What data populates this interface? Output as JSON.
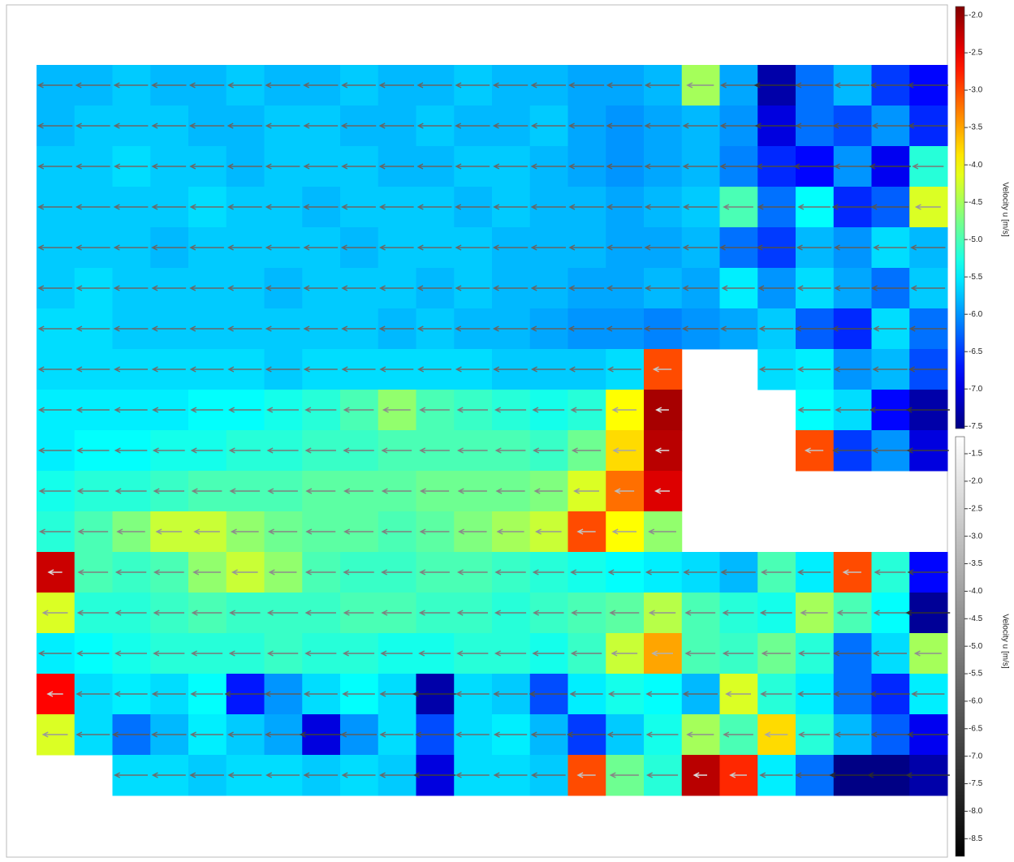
{
  "chart_data": {
    "type": "heatmap",
    "colormap": "jet",
    "z": [
      [
        -5.8,
        -5.8,
        -5.7,
        -5.8,
        -5.8,
        -5.7,
        -5.8,
        -5.8,
        -5.7,
        -5.8,
        -5.8,
        -5.7,
        -5.8,
        -5.8,
        -5.9,
        -5.9,
        -5.8,
        -4.5,
        -5.9,
        -7.3,
        -6.2,
        -5.8,
        -6.5,
        -6.8
      ],
      [
        -5.8,
        -5.7,
        -5.7,
        -5.7,
        -5.8,
        -5.8,
        -5.7,
        -5.7,
        -5.8,
        -5.8,
        -5.7,
        -5.8,
        -5.8,
        -5.7,
        -5.9,
        -6.0,
        -5.9,
        -5.8,
        -6.0,
        -7.0,
        -6.2,
        -6.4,
        -6.0,
        -6.6
      ],
      [
        -5.7,
        -5.7,
        -5.6,
        -5.7,
        -5.7,
        -5.8,
        -5.7,
        -5.7,
        -5.7,
        -5.8,
        -5.8,
        -5.7,
        -5.7,
        -5.8,
        -5.9,
        -6.0,
        -5.9,
        -5.8,
        -6.1,
        -6.6,
        -6.8,
        -6.0,
        -6.9,
        -5.2
      ],
      [
        -5.7,
        -5.7,
        -5.7,
        -5.7,
        -5.6,
        -5.7,
        -5.7,
        -5.8,
        -5.7,
        -5.7,
        -5.7,
        -5.8,
        -5.7,
        -5.8,
        -5.8,
        -5.9,
        -5.8,
        -5.7,
        -5.0,
        -6.2,
        -5.4,
        -6.6,
        -6.3,
        -4.2
      ],
      [
        -5.7,
        -5.7,
        -5.7,
        -5.8,
        -5.7,
        -5.7,
        -5.7,
        -5.7,
        -5.8,
        -5.7,
        -5.7,
        -5.7,
        -5.8,
        -5.8,
        -5.8,
        -5.9,
        -5.9,
        -5.8,
        -6.2,
        -6.5,
        -5.8,
        -6.0,
        -5.6,
        -5.8
      ],
      [
        -5.7,
        -5.6,
        -5.7,
        -5.7,
        -5.7,
        -5.7,
        -5.8,
        -5.7,
        -5.7,
        -5.7,
        -5.8,
        -5.7,
        -5.8,
        -5.8,
        -5.9,
        -5.9,
        -5.8,
        -5.9,
        -5.5,
        -6.0,
        -5.6,
        -5.9,
        -6.2,
        -5.7
      ],
      [
        -5.6,
        -5.6,
        -5.7,
        -5.7,
        -5.7,
        -5.7,
        -5.7,
        -5.7,
        -5.7,
        -5.8,
        -5.7,
        -5.8,
        -5.8,
        -5.9,
        -6.0,
        -6.0,
        -6.1,
        -6.0,
        -5.9,
        -5.7,
        -6.3,
        -6.6,
        -5.6,
        -6.2
      ],
      [
        -5.6,
        -5.6,
        -5.6,
        -5.6,
        -5.6,
        -5.6,
        -5.7,
        -5.6,
        -5.6,
        -5.6,
        -5.6,
        -5.6,
        -5.7,
        -5.7,
        -5.7,
        -5.6,
        -3.0,
        null,
        null,
        -5.6,
        -5.5,
        -6.0,
        -5.8,
        -6.4
      ],
      [
        -5.5,
        -5.5,
        -5.5,
        -5.5,
        -5.4,
        -5.4,
        -5.3,
        -5.2,
        -5.0,
        -4.6,
        -5.0,
        -5.1,
        -5.2,
        -5.3,
        -5.2,
        -4.0,
        -2.1,
        null,
        null,
        null,
        -5.4,
        -5.6,
        -6.8,
        -7.3
      ],
      [
        -5.5,
        -5.4,
        -5.4,
        -5.3,
        -5.3,
        -5.2,
        -5.2,
        -5.1,
        -5.1,
        -5.0,
        -5.0,
        -5.0,
        -5.0,
        -5.1,
        -4.8,
        -3.8,
        -2.2,
        null,
        null,
        null,
        -3.0,
        -6.5,
        -6.0,
        -7.0
      ],
      [
        -5.3,
        -5.2,
        -5.2,
        -5.1,
        -5.0,
        -5.0,
        -5.0,
        -4.9,
        -4.9,
        -4.9,
        -4.8,
        -4.8,
        -4.8,
        -4.7,
        -4.2,
        -3.2,
        -2.4,
        null,
        null,
        null,
        null,
        null,
        null,
        null
      ],
      [
        -5.2,
        -5.0,
        -4.7,
        -4.3,
        -4.3,
        -4.6,
        -4.8,
        -4.9,
        -4.9,
        -5.0,
        -4.9,
        -4.7,
        -4.5,
        -4.3,
        -3.0,
        -4.0,
        -4.6,
        null,
        null,
        null,
        null,
        null,
        null,
        null
      ],
      [
        -2.3,
        -5.0,
        -5.1,
        -5.0,
        -4.6,
        -4.3,
        -4.6,
        -5.0,
        -5.1,
        -5.1,
        -5.0,
        -5.0,
        -5.1,
        -5.2,
        -5.3,
        -5.4,
        -5.5,
        -5.6,
        -5.8,
        -5.0,
        -5.5,
        -3.0,
        -5.2,
        -6.8
      ],
      [
        -4.2,
        -5.2,
        -5.2,
        -5.1,
        -5.0,
        -5.1,
        -5.1,
        -5.1,
        -5.0,
        -5.0,
        -5.1,
        -5.1,
        -5.2,
        -5.1,
        -5.0,
        -4.9,
        -4.4,
        -5.0,
        -5.2,
        -5.3,
        -4.5,
        -5.0,
        -5.4,
        -7.4
      ],
      [
        -5.5,
        -5.4,
        -5.3,
        -5.2,
        -5.2,
        -5.2,
        -5.1,
        -5.2,
        -5.2,
        -5.3,
        -5.3,
        -5.2,
        -5.2,
        -5.3,
        -5.1,
        -4.3,
        -3.5,
        -5.0,
        -5.1,
        -4.8,
        -5.2,
        -6.2,
        -5.6,
        -4.5
      ],
      [
        -2.6,
        -5.6,
        -5.5,
        -5.6,
        -5.4,
        -6.7,
        -6.0,
        -5.6,
        -5.4,
        -5.6,
        -7.3,
        -5.6,
        -5.7,
        -6.4,
        -5.5,
        -5.3,
        -5.4,
        -5.8,
        -4.2,
        -5.2,
        -5.5,
        -6.2,
        -6.6,
        -5.5
      ],
      [
        -4.2,
        -5.6,
        -6.2,
        -5.8,
        -5.5,
        -5.7,
        -5.9,
        -7.0,
        -6.0,
        -5.6,
        -6.4,
        -5.6,
        -5.5,
        -5.8,
        -6.5,
        -5.7,
        -5.3,
        -4.5,
        -5.0,
        -3.8,
        -5.2,
        -5.8,
        -6.3,
        -6.9
      ],
      [
        null,
        null,
        -5.6,
        -5.6,
        -5.7,
        -5.6,
        -5.6,
        -5.7,
        -5.6,
        -5.7,
        -7.0,
        -5.6,
        -5.6,
        -5.7,
        -3.0,
        -4.8,
        -5.2,
        -2.2,
        -2.8,
        -5.5,
        -6.2,
        -7.5,
        -7.5,
        -7.3
      ]
    ],
    "zlim": [
      -7.53,
      -1.88
    ],
    "colorbar_label": "Velocity u [m/s]",
    "zticks": [
      {
        "value": -2,
        "label": "-2.0"
      },
      -2.5,
      {
        "value": -3,
        "label": "-3.0"
      },
      -3.5,
      {
        "value": -4,
        "label": "-4.0"
      },
      -4.5,
      {
        "value": -5,
        "label": "-5.0"
      },
      -5.5,
      {
        "value": -6,
        "label": "-6.0"
      },
      -6.5,
      {
        "value": -7,
        "label": "-7.0"
      },
      -7.5
    ],
    "vectors": {
      "colormap": "gray",
      "zlim": [
        -8.82,
        -1.19
      ],
      "colorbar_label": "Velocity u [m/s]",
      "zticks": [
        -1.5,
        {
          "value": -2,
          "label": "-2.0"
        },
        -2.5,
        {
          "value": -3,
          "label": "-3.0"
        },
        -3.5,
        {
          "value": -4,
          "label": "-4.0"
        },
        -4.5,
        {
          "value": -5,
          "label": "-5.0"
        },
        -5.5,
        {
          "value": -6,
          "label": "-6.0"
        },
        -6.5,
        {
          "value": -7,
          "label": "-7.0"
        },
        -7.5,
        {
          "value": -8,
          "label": "-8.0"
        },
        -8.5
      ]
    }
  }
}
